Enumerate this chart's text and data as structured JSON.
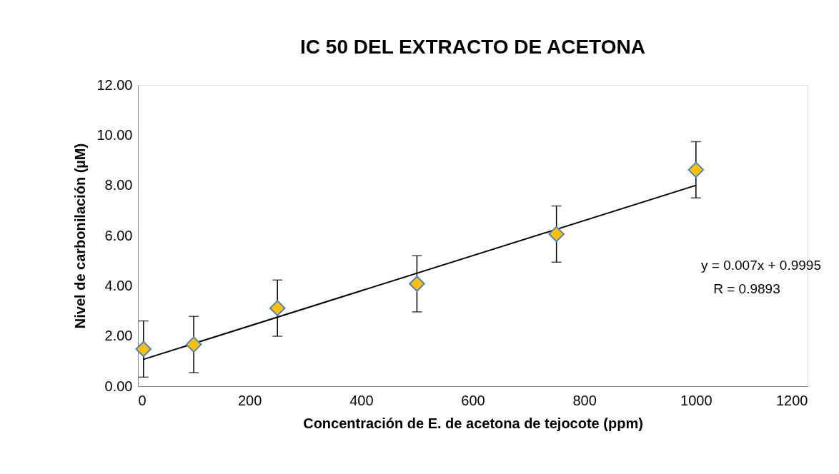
{
  "chart_data": {
    "type": "scatter",
    "title": "IC 50 DEL EXTRACTO DE ACETONA",
    "xlabel": "Concentración de E. de acetona de tejocote (ppm)",
    "ylabel": "Nivel de carbonilación (µM)",
    "x": [
      10,
      100,
      250,
      500,
      750,
      1000
    ],
    "series": [
      {
        "color": "#ffc000",
        "marker": "diamond",
        "values": [
          1.48,
          1.66,
          3.11,
          4.08,
          6.06,
          8.62
        ],
        "errors": [
          1.12,
          1.12,
          1.12,
          1.12,
          1.12,
          1.12
        ]
      },
      {
        "type": "line",
        "marker": "none",
        "color": "#000000",
        "x": [
          10,
          1000
        ],
        "values": [
          1.07,
          8.0
        ]
      }
    ],
    "grid": false,
    "xlim": [
      0,
      1200
    ],
    "xticks": [
      0,
      200,
      400,
      600,
      800,
      1000,
      1200
    ],
    "ylim": [
      0,
      12
    ],
    "yticks": [
      {
        "value": 0,
        "label": "0.00"
      },
      {
        "value": 2,
        "label": "2.00"
      },
      {
        "value": 4,
        "label": "4.00"
      },
      {
        "value": 6,
        "label": "6.00"
      },
      {
        "value": 8,
        "label": "8.00"
      },
      {
        "value": 10,
        "label": "10.00"
      },
      {
        "value": 12,
        "label": "12.00"
      }
    ],
    "annotations": [
      "y = 0.007x + 0.9995",
      "R = 0.9893"
    ]
  }
}
